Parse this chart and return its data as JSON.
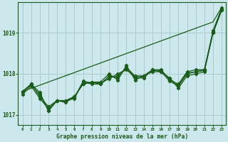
{
  "title": "Graphe pression niveau de la mer (hPa)",
  "background_color": "#cce8ec",
  "grid_color": "#aacccc",
  "line_color": "#1a5c1a",
  "xlim": [
    -0.5,
    23.5
  ],
  "ylim": [
    1016.75,
    1019.75
  ],
  "yticks": [
    1017,
    1018,
    1019
  ],
  "xtick_labels": [
    "0",
    "1",
    "2",
    "3",
    "4",
    "5",
    "6",
    "7",
    "8",
    "9",
    "10",
    "11",
    "12",
    "13",
    "14",
    "15",
    "16",
    "17",
    "18",
    "19",
    "20",
    "21",
    "22",
    "23"
  ],
  "series": [
    [
      1017.57,
      1017.75,
      1017.55,
      1017.1,
      1017.35,
      1017.35,
      1017.4,
      1017.8,
      1017.75,
      1017.75,
      1017.9,
      1017.95,
      1018.15,
      1017.95,
      1017.95,
      1018.1,
      1018.1,
      1017.85,
      1017.75,
      1018.05,
      1018.1,
      1018.1,
      1019.05,
      1019.6
    ],
    [
      1017.5,
      1017.7,
      1017.4,
      1017.15,
      1017.35,
      1017.35,
      1017.45,
      1017.75,
      1017.8,
      1017.8,
      1018.0,
      1017.85,
      1018.2,
      1017.85,
      1017.95,
      1018.05,
      1018.05,
      1017.9,
      1017.65,
      1017.95,
      1018.0,
      1018.05,
      1019.0,
      1019.55
    ],
    [
      1017.55,
      1017.75,
      1017.45,
      1017.2,
      1017.35,
      1017.3,
      1017.45,
      1017.75,
      1017.8,
      1017.75,
      1017.95,
      1017.9,
      1018.15,
      1017.9,
      1017.9,
      1018.1,
      1018.05,
      1017.82,
      1017.7,
      1018.0,
      1018.05,
      1018.1,
      1019.0,
      1019.55
    ],
    [
      1017.57,
      1017.72,
      1017.5,
      1017.1,
      1017.35,
      1017.32,
      1017.42,
      1017.82,
      1017.78,
      1017.78,
      1017.88,
      1018.0,
      1018.1,
      1017.92,
      1017.95,
      1018.08,
      1018.08,
      1017.88,
      1017.72,
      1018.02,
      1018.05,
      1018.08,
      1019.02,
      1019.58
    ]
  ],
  "trend_line": [
    1017.57,
    1017.647,
    1017.724,
    1017.801,
    1017.878,
    1017.955,
    1018.032,
    1018.109,
    1018.186,
    1018.263,
    1018.34,
    1018.417,
    1018.494,
    1018.571,
    1018.648,
    1018.725,
    1018.802,
    1018.879,
    1018.956,
    1019.033,
    1019.11,
    1019.187,
    1019.264,
    1019.62
  ]
}
